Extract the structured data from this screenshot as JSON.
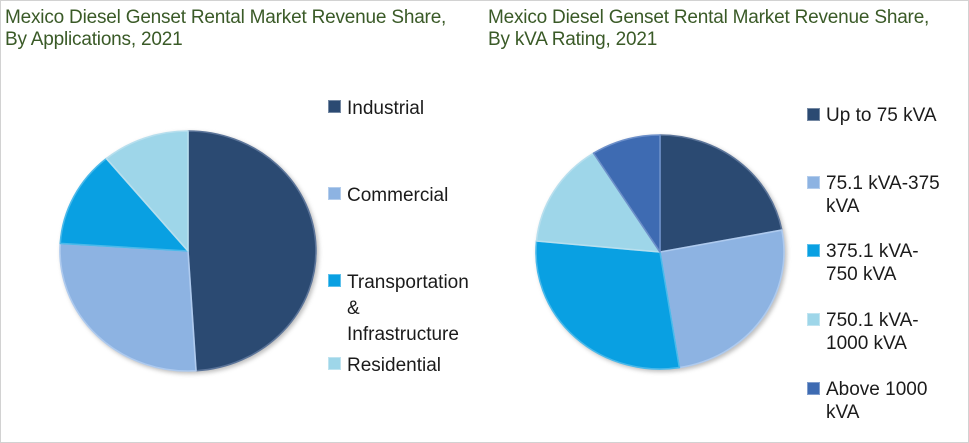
{
  "window": {
    "background": "#ffffff",
    "border_color": "#d2d2d2",
    "title_color": "#3a5a27",
    "legend_text_color": "#1b1b1b"
  },
  "chart_data": [
    {
      "type": "pie",
      "title": "Mexico Diesel Genset Rental Market Revenue Share, By Applications, 2021",
      "title_lines": [
        "Mexico Diesel Genset Rental Market Revenue Share,",
        "By Applications, 2021"
      ],
      "labels": [
        "Industrial",
        "Commercial",
        "Transportation & Infrastructure",
        "Residential"
      ],
      "values": [
        49,
        27,
        13,
        11
      ],
      "unit": "% share (estimated from slice angles; no data labels shown)",
      "colors": [
        "#2b4a72",
        "#8db3e2",
        "#09a0e2",
        "#9ed6e9"
      ],
      "stroke_colors": [
        "#5b7499",
        "#aecaee",
        "#4ab9ea",
        "#b7dfee"
      ],
      "start_angle_deg": 0,
      "direction": "clockwise",
      "legend_position": "right",
      "legend_items": [
        {
          "lines": [
            "Industrial"
          ]
        },
        {
          "lines": [
            "Commercial"
          ]
        },
        {
          "lines": [
            "Transportation",
            "&",
            "Infrastructure"
          ]
        },
        {
          "lines": [
            "Residential"
          ]
        }
      ]
    },
    {
      "type": "pie",
      "title": "Mexico Diesel Genset Rental Market Revenue Share, By kVA Rating, 2021",
      "title_lines": [
        "Mexico Diesel Genset Rental Market Revenue Share,",
        "By kVA Rating, 2021"
      ],
      "labels": [
        "Up to 75 kVA",
        "75.1 kVA-375 kVA",
        "375.1 kVA-750 kVA",
        "750.1 kVA-1000 kVA",
        "Above 1000 kVA"
      ],
      "values": [
        22,
        25.5,
        29,
        14.5,
        9
      ],
      "unit": "% share (estimated from slice angles; no data labels shown)",
      "colors": [
        "#2b4a72",
        "#8db3e2",
        "#09a0e2",
        "#9ed6e9",
        "#3e6bb2"
      ],
      "stroke_colors": [
        "#5b7499",
        "#aecaee",
        "#4ab9ea",
        "#b7dfee",
        "#6c8fc9"
      ],
      "start_angle_deg": 0,
      "direction": "clockwise",
      "legend_position": "right",
      "legend_items": [
        {
          "lines": [
            "Up to 75 kVA"
          ]
        },
        {
          "lines": [
            "75.1 kVA-375",
            "kVA"
          ]
        },
        {
          "lines": [
            "375.1 kVA-",
            "750 kVA"
          ]
        },
        {
          "lines": [
            "750.1 kVA-",
            "1000 kVA"
          ]
        },
        {
          "lines": [
            "Above 1000",
            "kVA"
          ]
        }
      ]
    }
  ]
}
